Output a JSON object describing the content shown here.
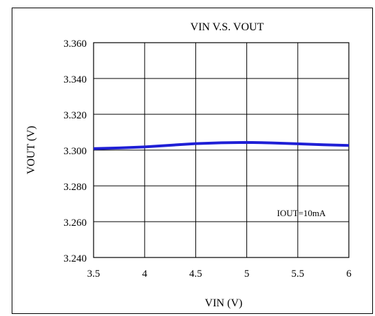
{
  "chart_data": {
    "type": "line",
    "title": "VIN V.S. VOUT",
    "xlabel": "VIN (V)",
    "ylabel": "VOUT (V)",
    "xlim": [
      3.5,
      6
    ],
    "ylim": [
      3.24,
      3.36
    ],
    "x_ticks": [
      "3.5",
      "4",
      "4.5",
      "5",
      "5.5",
      "6"
    ],
    "y_ticks": [
      "3.360",
      "3.340",
      "3.320",
      "3.300",
      "3.280",
      "3.260",
      "3.240"
    ],
    "grid": true,
    "annotation": "IOUT=10mA",
    "series": [
      {
        "color": "#1f1fd6",
        "x": [
          3.5,
          3.75,
          4.0,
          4.25,
          4.5,
          4.75,
          5.0,
          5.25,
          5.5,
          5.75,
          6.0
        ],
        "y": [
          3.3008,
          3.3012,
          3.3018,
          3.3027,
          3.3036,
          3.3041,
          3.3043,
          3.304,
          3.3035,
          3.303,
          3.3026
        ]
      }
    ]
  }
}
